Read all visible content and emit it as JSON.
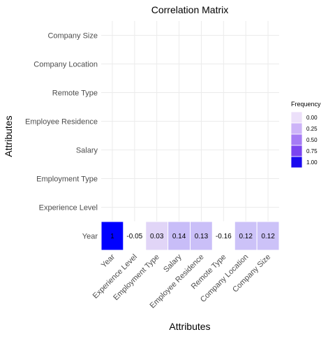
{
  "chart_data": {
    "type": "heatmap",
    "title": "Correlation Matrix",
    "xlabel": "Attributes",
    "ylabel": "Attributes",
    "x_categories": [
      "Year",
      "Experience Level",
      "Employment Type",
      "Salary",
      "Employee Residence",
      "Remote Type",
      "Company Location",
      "Company Size"
    ],
    "y_categories": [
      "Year",
      "Experience Level",
      "Employment Type",
      "Salary",
      "Employee Residence",
      "Remote Type",
      "Company Location",
      "Company Size"
    ],
    "cells": [
      {
        "x": "Year",
        "y": "Year",
        "value": 1,
        "label": "1"
      },
      {
        "x": "Experience Level",
        "y": "Year",
        "value": -0.05,
        "label": "-0.05"
      },
      {
        "x": "Employment Type",
        "y": "Year",
        "value": 0.03,
        "label": "0.03"
      },
      {
        "x": "Salary",
        "y": "Year",
        "value": 0.14,
        "label": "0.14"
      },
      {
        "x": "Employee Residence",
        "y": "Year",
        "value": 0.13,
        "label": "0.13"
      },
      {
        "x": "Remote Type",
        "y": "Year",
        "value": -0.16,
        "label": "-0.16"
      },
      {
        "x": "Company Location",
        "y": "Year",
        "value": 0.12,
        "label": "0.12"
      },
      {
        "x": "Company Size",
        "y": "Year",
        "value": 0.12,
        "label": "0.12"
      }
    ],
    "legend": {
      "title": "Frequency",
      "placement": "right",
      "entries": [
        {
          "label": "0.00",
          "color": "#ece0fa"
        },
        {
          "label": "0.25",
          "color": "#cdb4f8"
        },
        {
          "label": "0.50",
          "color": "#a67cf5"
        },
        {
          "label": "0.75",
          "color": "#7b45f0"
        },
        {
          "label": "1.00",
          "color": "#1a0aef"
        }
      ]
    },
    "grid": true,
    "colors": {
      "high": "#0000ff",
      "low": "#e8dcf7",
      "negative": "#ffffff",
      "grid": "#ebebeb"
    }
  }
}
